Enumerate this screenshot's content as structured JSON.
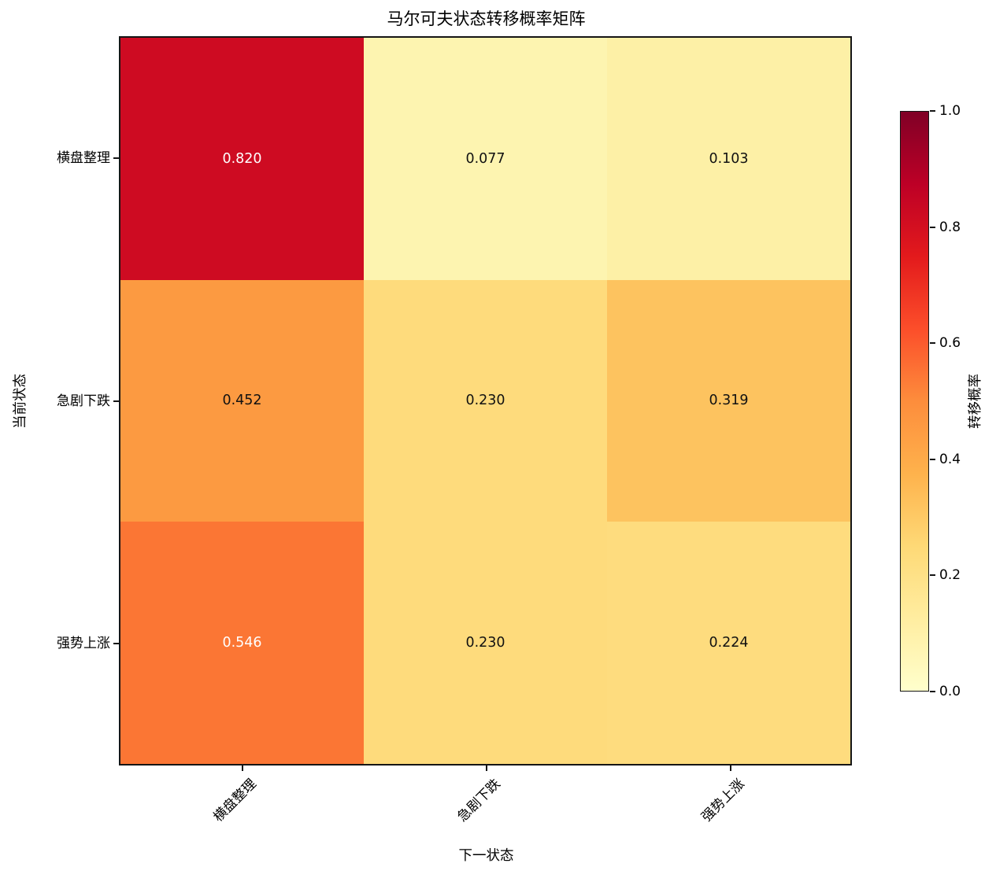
{
  "chart_data": {
    "type": "heatmap",
    "title": "马尔可夫状态转移概率矩阵",
    "xlabel": "下一状态",
    "ylabel": "当前状态",
    "x_categories": [
      "横盘整理",
      "急剧下跌",
      "强势上涨"
    ],
    "y_categories": [
      "横盘整理",
      "急剧下跌",
      "强势上涨"
    ],
    "values": [
      [
        0.82,
        0.077,
        0.103
      ],
      [
        0.452,
        0.23,
        0.319
      ],
      [
        0.546,
        0.23,
        0.224
      ]
    ],
    "cell_labels": [
      [
        "0.820",
        "0.077",
        "0.103"
      ],
      [
        "0.452",
        "0.230",
        "0.319"
      ],
      [
        "0.546",
        "0.230",
        "0.224"
      ]
    ],
    "cell_colors": [
      [
        "#ce0b22",
        "#fdf4b0",
        "#fdf0a6"
      ],
      [
        "#fc9a41",
        "#fedb7c",
        "#fdc35f"
      ],
      [
        "#fb7634",
        "#fedb7c",
        "#fedc7e"
      ]
    ],
    "cell_text_colors": [
      [
        "#ffffff",
        "#111111",
        "#111111"
      ],
      [
        "#111111",
        "#111111",
        "#111111"
      ],
      [
        "#ffffff",
        "#111111",
        "#111111"
      ]
    ],
    "grid": false,
    "colormap": "YlOrRd",
    "colorbar": {
      "label": "转移概率",
      "min": 0.0,
      "max": 1.0,
      "tick_labels": [
        "1.0",
        "0.8",
        "0.6",
        "0.4",
        "0.2",
        "0.0"
      ],
      "gradient_stops": [
        {
          "pos": 0.0,
          "color": "#ffffcc"
        },
        {
          "pos": 0.125,
          "color": "#ffeda0"
        },
        {
          "pos": 0.25,
          "color": "#fed976"
        },
        {
          "pos": 0.375,
          "color": "#feb24c"
        },
        {
          "pos": 0.5,
          "color": "#fd8d3c"
        },
        {
          "pos": 0.625,
          "color": "#fc4e2a"
        },
        {
          "pos": 0.75,
          "color": "#e31a1c"
        },
        {
          "pos": 0.875,
          "color": "#bd0026"
        },
        {
          "pos": 1.0,
          "color": "#800026"
        }
      ]
    }
  }
}
